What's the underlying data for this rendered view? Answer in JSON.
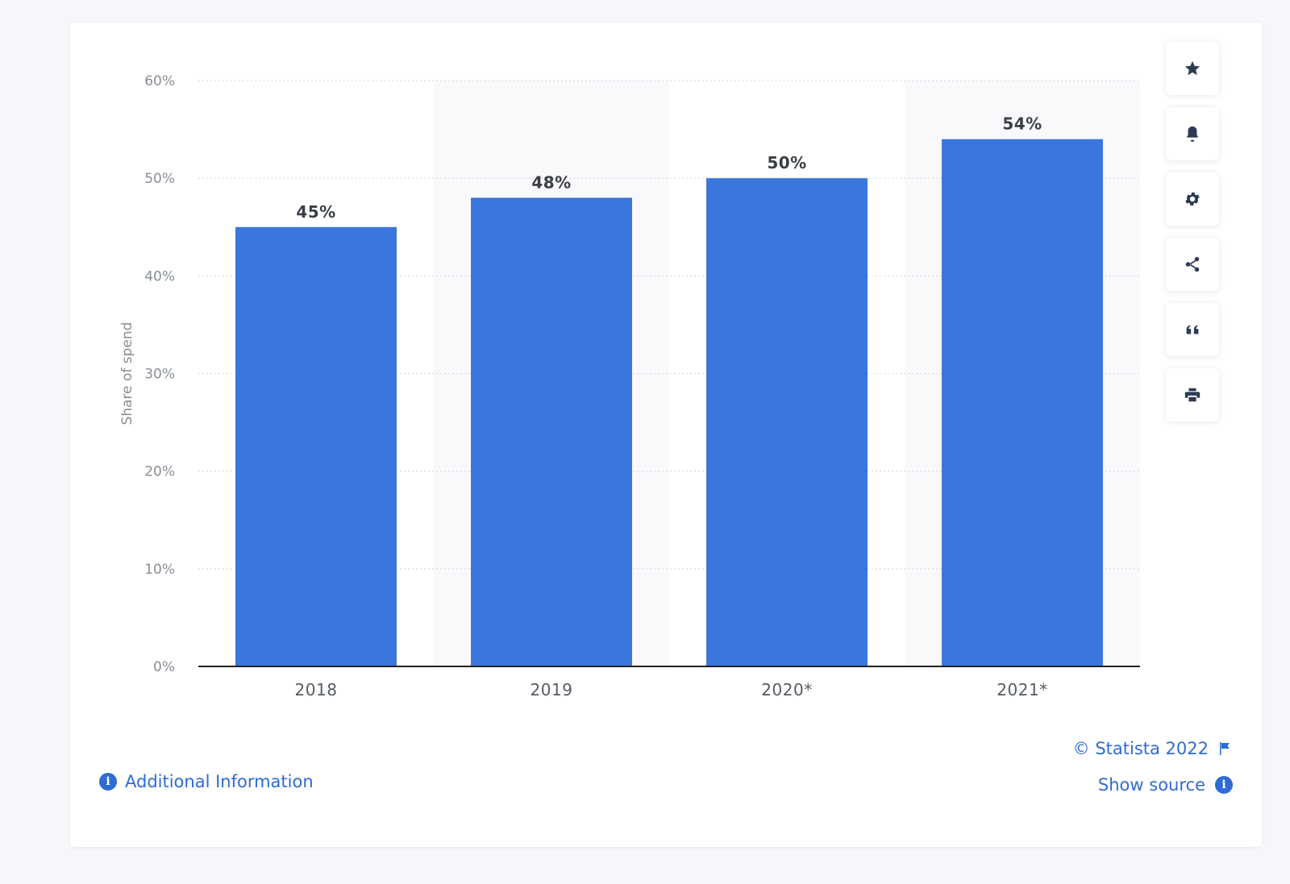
{
  "chart_data": {
    "type": "bar",
    "categories": [
      "2018",
      "2019",
      "2020*",
      "2021*"
    ],
    "values": [
      45,
      48,
      50,
      54
    ],
    "value_labels": [
      "45%",
      "48%",
      "50%",
      "54%"
    ],
    "ylabel": "Share of spend",
    "ylim": [
      0,
      60
    ],
    "yticks": [
      0,
      10,
      20,
      30,
      40,
      50,
      60
    ],
    "ytick_labels": [
      "0%",
      "10%",
      "20%",
      "30%",
      "40%",
      "50%",
      "60%"
    ],
    "bar_color": "#3b76dd",
    "grid": true,
    "legend": "none"
  },
  "toolbar": {
    "icons": [
      "star-icon",
      "bell-icon",
      "gear-icon",
      "share-icon",
      "quote-icon",
      "print-icon"
    ]
  },
  "footer": {
    "additional_info": "Additional Information",
    "copyright": "© Statista 2022",
    "show_source": "Show source",
    "info_glyph": "i"
  },
  "colors": {
    "accent": "#2f6bd3",
    "bar": "#3b76dd"
  }
}
